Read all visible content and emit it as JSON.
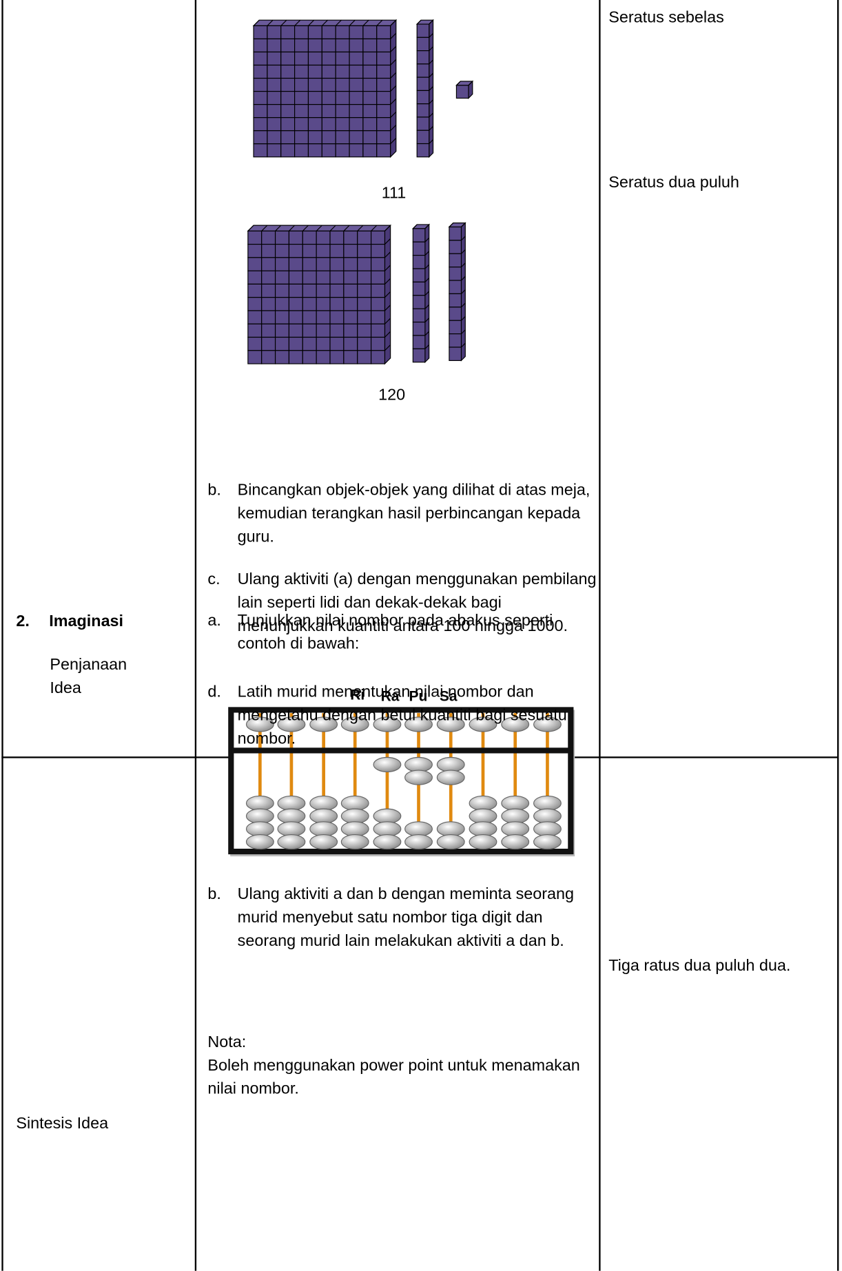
{
  "rows": [
    {
      "activities": {
        "figures": [
          {
            "label": "111"
          },
          {
            "label": "120"
          }
        ],
        "items": [
          {
            "letter": "b.",
            "text": "Bincangkan objek-objek yang dilihat di atas meja, kemudian terangkan hasil perbincangan kepada guru."
          },
          {
            "letter": "c.",
            "text": "Ulang aktiviti (a) dengan menggunakan pembilang lain seperti lidi dan dekak-dekak bagi menunjukkan kuantiti antara 100 hingga 1000."
          },
          {
            "letter": "d.",
            "text": "Latih murid menentukan nilai nombor dan mengetahu dengan betul kuantiti bagi sesuatu nombor."
          }
        ]
      },
      "notes": [
        "Seratus sebelas",
        "Seratus dua puluh"
      ]
    },
    {
      "step": {
        "number": "2.",
        "title": "Imaginasi",
        "subs": [
          "Penjanaan Idea",
          "Sintesis Idea"
        ]
      },
      "activities": {
        "item_a": {
          "letter": "a.",
          "text": "Tunjukkan nilai nombor pada abakus seperti contoh di bawah:"
        },
        "abacus_labels": [
          "Ri",
          "Ra",
          "Pu",
          "Sa"
        ],
        "item_b": {
          "letter": "b.",
          "text": "Ulang aktiviti a dan b dengan meminta seorang murid menyebut satu nombor tiga digit dan seorang murid lain melakukan aktiviti a dan b."
        },
        "nota": {
          "title": "Nota:",
          "text": "Boleh menggunakan power point untuk menamakan nilai nombor."
        }
      },
      "notes": [
        "Tiga ratus dua puluh dua."
      ]
    }
  ]
}
